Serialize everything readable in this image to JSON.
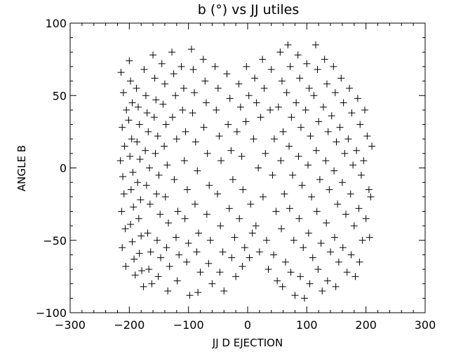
{
  "chart_data": {
    "type": "scatter",
    "title": "b (°) vs JJ utiles",
    "xlabel": "JJ D EJECTION",
    "ylabel": "ANGLE B",
    "xlim": [
      -300,
      300
    ],
    "ylim": [
      -100,
      100
    ],
    "xticks": [
      -300,
      -200,
      -100,
      0,
      100,
      200,
      300
    ],
    "yticks": [
      -100,
      -50,
      0,
      50,
      100
    ],
    "marker": "plus",
    "grid": false,
    "color": "#000000",
    "series": [
      {
        "points": [
          [
            -214,
            66
          ],
          [
            -210,
            52
          ],
          [
            -205,
            40
          ],
          [
            -212,
            28
          ],
          [
            -208,
            15
          ],
          [
            -215,
            5
          ],
          [
            -211,
            -6
          ],
          [
            -209,
            -18
          ],
          [
            -213,
            -30
          ],
          [
            -207,
            -42
          ],
          [
            -212,
            -55
          ],
          [
            -206,
            -68
          ],
          [
            -200,
            74
          ],
          [
            -198,
            60
          ],
          [
            -195,
            45
          ],
          [
            -201,
            33
          ],
          [
            -196,
            20
          ],
          [
            -199,
            8
          ],
          [
            -194,
            -3
          ],
          [
            -197,
            -15
          ],
          [
            -193,
            -27
          ],
          [
            -198,
            -39
          ],
          [
            -195,
            -51
          ],
          [
            -192,
            -63
          ],
          [
            -190,
            -74
          ],
          [
            -188,
            55
          ],
          [
            -185,
            42
          ],
          [
            -183,
            30
          ],
          [
            -187,
            18
          ],
          [
            -182,
            6
          ],
          [
            -186,
            -10
          ],
          [
            -181,
            -22
          ],
          [
            -184,
            -35
          ],
          [
            -180,
            -47
          ],
          [
            -183,
            -59
          ],
          [
            -179,
            -71
          ],
          [
            -176,
            -82
          ],
          [
            -175,
            68
          ],
          [
            -172,
            50
          ],
          [
            -170,
            38
          ],
          [
            -168,
            25
          ],
          [
            -173,
            12
          ],
          [
            -166,
            0
          ],
          [
            -171,
            -12
          ],
          [
            -165,
            -25
          ],
          [
            -169,
            -45
          ],
          [
            -164,
            -58
          ],
          [
            -167,
            -70
          ],
          [
            -162,
            -80
          ],
          [
            -160,
            78
          ],
          [
            -157,
            62
          ],
          [
            -155,
            47
          ],
          [
            -158,
            35
          ],
          [
            -152,
            22
          ],
          [
            -156,
            10
          ],
          [
            -150,
            -5
          ],
          [
            -154,
            -18
          ],
          [
            -148,
            -32
          ],
          [
            -153,
            -50
          ],
          [
            -147,
            -62
          ],
          [
            -151,
            -75
          ],
          [
            -145,
            72
          ],
          [
            -140,
            58
          ],
          [
            -143,
            44
          ],
          [
            -138,
            30
          ],
          [
            -141,
            15
          ],
          [
            -136,
            2
          ],
          [
            -139,
            -20
          ],
          [
            -134,
            -38
          ],
          [
            -137,
            -55
          ],
          [
            -132,
            -68
          ],
          [
            -135,
            -85
          ],
          [
            -128,
            80
          ],
          [
            -125,
            65
          ],
          [
            -122,
            50
          ],
          [
            -127,
            35
          ],
          [
            -120,
            20
          ],
          [
            -124,
            -8
          ],
          [
            -118,
            -30
          ],
          [
            -121,
            -48
          ],
          [
            -116,
            -60
          ],
          [
            -119,
            -78
          ],
          [
            -112,
            70
          ],
          [
            -108,
            55
          ],
          [
            -110,
            40
          ],
          [
            -105,
            25
          ],
          [
            -107,
            5
          ],
          [
            -102,
            -15
          ],
          [
            -106,
            -35
          ],
          [
            -100,
            -52
          ],
          [
            -103,
            -65
          ],
          [
            -98,
            -88
          ],
          [
            -95,
            82
          ],
          [
            -92,
            68
          ],
          [
            -90,
            52
          ],
          [
            -93,
            38
          ],
          [
            -88,
            18
          ],
          [
            -85,
            -2
          ],
          [
            -89,
            -25
          ],
          [
            -83,
            -45
          ],
          [
            -86,
            -58
          ],
          [
            -80,
            -72
          ],
          [
            -84,
            -86
          ],
          [
            -75,
            75
          ],
          [
            -72,
            60
          ],
          [
            -70,
            45
          ],
          [
            -74,
            28
          ],
          [
            -68,
            10
          ],
          [
            -65,
            -12
          ],
          [
            -69,
            -32
          ],
          [
            -63,
            -50
          ],
          [
            -66,
            -66
          ],
          [
            -60,
            -80
          ],
          [
            -55,
            70
          ],
          [
            -50,
            55
          ],
          [
            -53,
            40
          ],
          [
            -48,
            22
          ],
          [
            -45,
            5
          ],
          [
            -51,
            -18
          ],
          [
            -46,
            -40
          ],
          [
            -42,
            -58
          ],
          [
            -47,
            -72
          ],
          [
            -40,
            -85
          ],
          [
            -35,
            65
          ],
          [
            -30,
            48
          ],
          [
            -33,
            30
          ],
          [
            -28,
            12
          ],
          [
            -25,
            -8
          ],
          [
            -31,
            -28
          ],
          [
            -22,
            -48
          ],
          [
            -27,
            -62
          ],
          [
            -20,
            -75
          ],
          [
            -15,
            58
          ],
          [
            -12,
            42
          ],
          [
            -18,
            25
          ],
          [
            -10,
            8
          ],
          [
            -8,
            -15
          ],
          [
            -14,
            -35
          ],
          [
            -5,
            -55
          ],
          [
            -9,
            -68
          ],
          [
            -2,
            70
          ],
          [
            2,
            50
          ],
          [
            -3,
            32
          ],
          [
            5,
            -25
          ],
          [
            8,
            -45
          ],
          [
            3,
            -62
          ],
          [
            12,
            62
          ],
          [
            15,
            45
          ],
          [
            10,
            20
          ],
          [
            18,
            0
          ],
          [
            14,
            -40
          ],
          [
            20,
            -58
          ],
          [
            25,
            75
          ],
          [
            28,
            55
          ],
          [
            22,
            35
          ],
          [
            30,
            10
          ],
          [
            26,
            -20
          ],
          [
            32,
            -50
          ],
          [
            35,
            -70
          ],
          [
            40,
            68
          ],
          [
            38,
            40
          ],
          [
            45,
            20
          ],
          [
            42,
            -5
          ],
          [
            48,
            -30
          ],
          [
            44,
            -60
          ],
          [
            50,
            -78
          ],
          [
            55,
            80
          ],
          [
            58,
            60
          ],
          [
            52,
            42
          ],
          [
            60,
            25
          ],
          [
            56,
            5
          ],
          [
            62,
            -18
          ],
          [
            57,
            -42
          ],
          [
            64,
            -65
          ],
          [
            59,
            -82
          ],
          [
            68,
            85
          ],
          [
            72,
            70
          ],
          [
            66,
            52
          ],
          [
            74,
            35
          ],
          [
            70,
            15
          ],
          [
            76,
            -5
          ],
          [
            71,
            -28
          ],
          [
            78,
            -50
          ],
          [
            73,
            -72
          ],
          [
            80,
            -88
          ],
          [
            85,
            78
          ],
          [
            88,
            62
          ],
          [
            82,
            45
          ],
          [
            90,
            28
          ],
          [
            86,
            8
          ],
          [
            92,
            -12
          ],
          [
            87,
            -35
          ],
          [
            94,
            -55
          ],
          [
            89,
            -75
          ],
          [
            96,
            -90
          ],
          [
            100,
            72
          ],
          [
            104,
            55
          ],
          [
            98,
            40
          ],
          [
            106,
            22
          ],
          [
            102,
            2
          ],
          [
            108,
            -20
          ],
          [
            103,
            -45
          ],
          [
            110,
            -62
          ],
          [
            105,
            -80
          ],
          [
            115,
            85
          ],
          [
            118,
            68
          ],
          [
            112,
            50
          ],
          [
            120,
            32
          ],
          [
            116,
            12
          ],
          [
            122,
            -8
          ],
          [
            117,
            -30
          ],
          [
            124,
            -52
          ],
          [
            119,
            -70
          ],
          [
            126,
            -85
          ],
          [
            130,
            75
          ],
          [
            134,
            58
          ],
          [
            128,
            42
          ],
          [
            136,
            25
          ],
          [
            132,
            5
          ],
          [
            138,
            -15
          ],
          [
            133,
            -38
          ],
          [
            140,
            -58
          ],
          [
            135,
            -78
          ],
          [
            145,
            70
          ],
          [
            148,
            52
          ],
          [
            142,
            36
          ],
          [
            150,
            18
          ],
          [
            146,
            -2
          ],
          [
            152,
            -25
          ],
          [
            147,
            -48
          ],
          [
            154,
            -65
          ],
          [
            149,
            -82
          ],
          [
            158,
            62
          ],
          [
            162,
            45
          ],
          [
            156,
            28
          ],
          [
            164,
            10
          ],
          [
            160,
            -10
          ],
          [
            166,
            -32
          ],
          [
            161,
            -55
          ],
          [
            168,
            -72
          ],
          [
            172,
            55
          ],
          [
            176,
            38
          ],
          [
            170,
            20
          ],
          [
            178,
            2
          ],
          [
            174,
            -18
          ],
          [
            180,
            -40
          ],
          [
            175,
            -60
          ],
          [
            182,
            -75
          ],
          [
            186,
            48
          ],
          [
            190,
            30
          ],
          [
            184,
            12
          ],
          [
            192,
            -5
          ],
          [
            188,
            -28
          ],
          [
            194,
            -50
          ],
          [
            189,
            -65
          ],
          [
            198,
            40
          ],
          [
            202,
            22
          ],
          [
            196,
            5
          ],
          [
            205,
            -15
          ],
          [
            200,
            -35
          ],
          [
            206,
            -48
          ],
          [
            210,
            15
          ],
          [
            208,
            -20
          ]
        ]
      }
    ]
  }
}
